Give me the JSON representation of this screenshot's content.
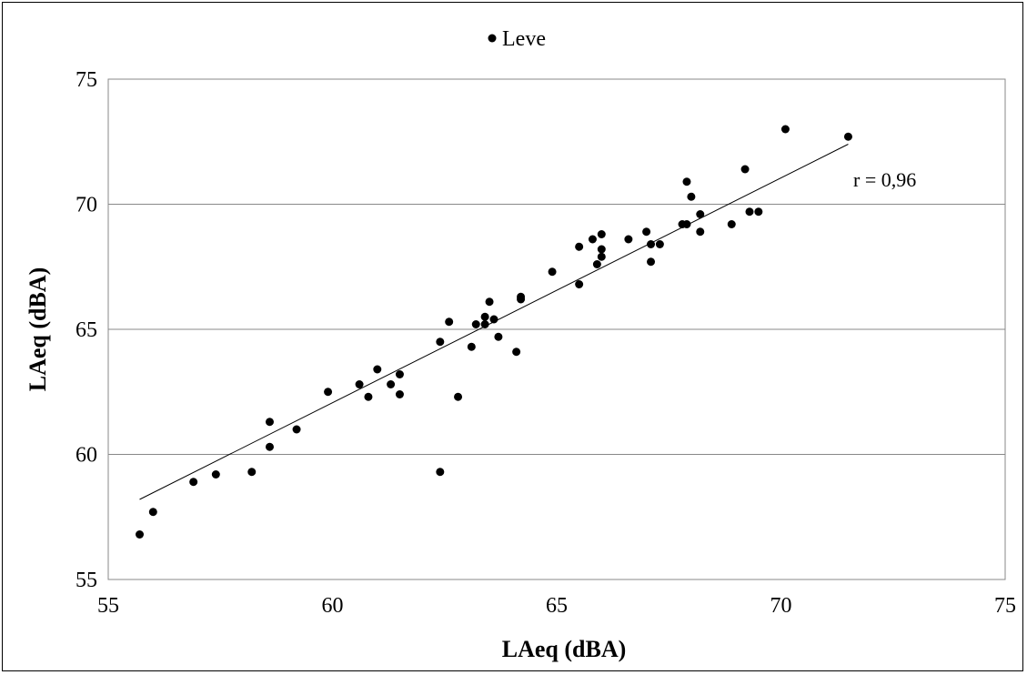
{
  "chart_data": {
    "type": "scatter",
    "title": "",
    "xlabel": "LAeq (dBA)",
    "ylabel": "LAeq (dBA)",
    "xlim": [
      55,
      75
    ],
    "ylim": [
      55,
      75
    ],
    "x_ticks": [
      55,
      60,
      65,
      70,
      75
    ],
    "y_ticks": [
      55,
      60,
      65,
      70,
      75
    ],
    "grid": "horizontal",
    "legend": {
      "position": "top",
      "entries": [
        "Leve"
      ]
    },
    "point_color": "#000000",
    "series": [
      {
        "name": "Leve",
        "points": [
          [
            55.7,
            56.8
          ],
          [
            56.0,
            57.7
          ],
          [
            56.9,
            58.9
          ],
          [
            57.4,
            59.2
          ],
          [
            58.2,
            59.3
          ],
          [
            58.6,
            61.3
          ],
          [
            58.6,
            60.3
          ],
          [
            59.2,
            61.0
          ],
          [
            59.9,
            62.5
          ],
          [
            60.6,
            62.8
          ],
          [
            60.8,
            62.3
          ],
          [
            61.0,
            63.4
          ],
          [
            61.3,
            62.8
          ],
          [
            61.5,
            63.2
          ],
          [
            61.5,
            62.4
          ],
          [
            62.4,
            64.5
          ],
          [
            62.4,
            59.3
          ],
          [
            62.6,
            65.3
          ],
          [
            62.8,
            62.3
          ],
          [
            63.1,
            64.3
          ],
          [
            63.2,
            65.2
          ],
          [
            63.4,
            65.2
          ],
          [
            63.4,
            65.5
          ],
          [
            63.5,
            66.1
          ],
          [
            63.6,
            65.4
          ],
          [
            63.7,
            64.7
          ],
          [
            64.1,
            64.1
          ],
          [
            64.2,
            66.2
          ],
          [
            64.2,
            66.3
          ],
          [
            64.9,
            67.3
          ],
          [
            65.5,
            66.8
          ],
          [
            65.5,
            68.3
          ],
          [
            65.8,
            68.6
          ],
          [
            65.9,
            67.6
          ],
          [
            66.0,
            68.8
          ],
          [
            66.0,
            68.2
          ],
          [
            66.0,
            67.9
          ],
          [
            66.6,
            68.6
          ],
          [
            67.0,
            68.9
          ],
          [
            67.1,
            68.4
          ],
          [
            67.1,
            67.7
          ],
          [
            67.3,
            68.4
          ],
          [
            67.8,
            69.2
          ],
          [
            67.9,
            70.9
          ],
          [
            67.9,
            69.2
          ],
          [
            68.0,
            70.3
          ],
          [
            68.2,
            69.6
          ],
          [
            68.2,
            68.9
          ],
          [
            68.9,
            69.2
          ],
          [
            69.2,
            71.4
          ],
          [
            69.3,
            69.7
          ],
          [
            69.5,
            69.7
          ],
          [
            70.1,
            73.0
          ],
          [
            71.5,
            72.7
          ]
        ]
      }
    ],
    "trendline": {
      "x": [
        55.7,
        71.5
      ],
      "y": [
        58.2,
        72.4
      ]
    },
    "annotation": "r = 0,96"
  }
}
